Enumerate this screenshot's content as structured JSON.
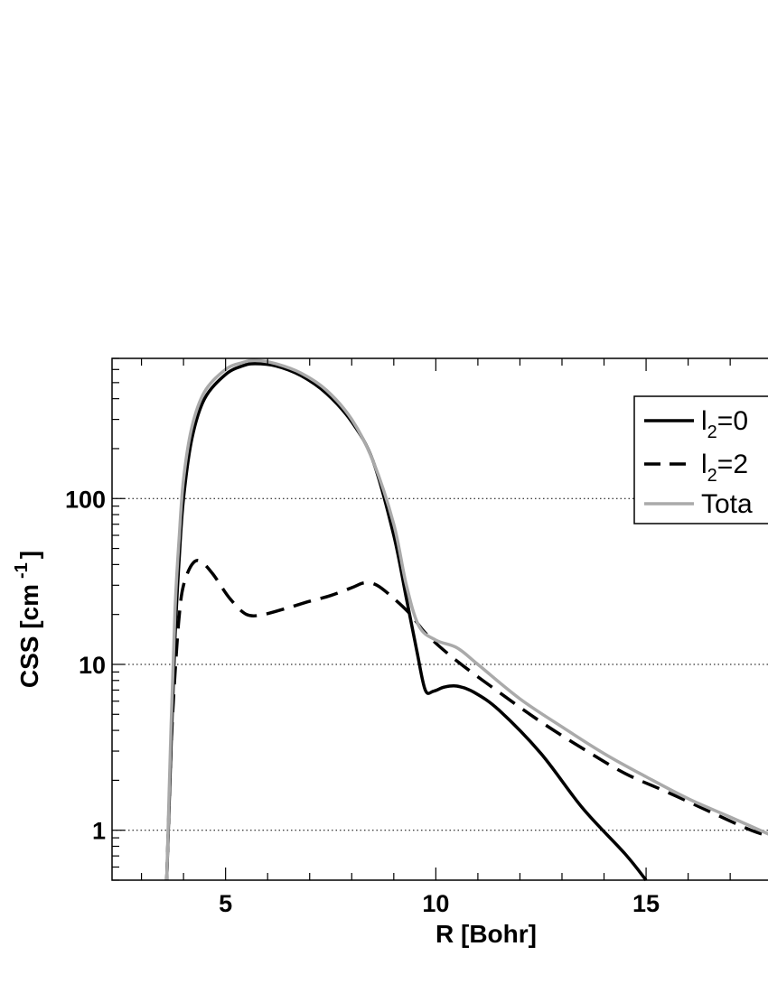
{
  "chart_data": {
    "type": "line",
    "xlabel": "R [Bohr]",
    "ylabel_main": "CSS [cm",
    "ylabel_sup": "-1",
    "ylabel_close": "]",
    "xlim": [
      2.3,
      18.2
    ],
    "ylim": [
      0.5,
      700
    ],
    "yscale": "log",
    "x_ticks": [
      5,
      10,
      15
    ],
    "x_tick_labels": [
      "5",
      "10",
      "15"
    ],
    "y_ticks": [
      1,
      10,
      100
    ],
    "y_tick_labels": [
      "1",
      "10",
      "100"
    ],
    "grid": "horizontal dotted at y ticks",
    "legend_position": "top-right",
    "series": [
      {
        "name_main": "l",
        "name_sub": "2",
        "name_rest": "=0",
        "color": "#000000",
        "dash": "solid",
        "points": [
          [
            3.6,
            0.5
          ],
          [
            3.7,
            3
          ],
          [
            3.8,
            15
          ],
          [
            3.9,
            45
          ],
          [
            4.0,
            100
          ],
          [
            4.2,
            230
          ],
          [
            4.5,
            400
          ],
          [
            5.0,
            560
          ],
          [
            5.4,
            630
          ],
          [
            5.7,
            650
          ],
          [
            6.2,
            630
          ],
          [
            6.8,
            550
          ],
          [
            7.4,
            430
          ],
          [
            8.0,
            290
          ],
          [
            8.5,
            170
          ],
          [
            9.0,
            60
          ],
          [
            9.3,
            25
          ],
          [
            9.55,
            12
          ],
          [
            9.75,
            7
          ],
          [
            9.95,
            6.9
          ],
          [
            10.2,
            7.3
          ],
          [
            10.5,
            7.4
          ],
          [
            10.9,
            6.8
          ],
          [
            11.5,
            5.3
          ],
          [
            12.5,
            2.9
          ],
          [
            13.5,
            1.35
          ],
          [
            14.5,
            0.72
          ],
          [
            15.0,
            0.5
          ]
        ]
      },
      {
        "name_main": "l",
        "name_sub": "2",
        "name_rest": "=2",
        "color": "#000000",
        "dash": "dashed",
        "points": [
          [
            3.6,
            0.5
          ],
          [
            3.7,
            3
          ],
          [
            3.8,
            9
          ],
          [
            3.9,
            20
          ],
          [
            4.0,
            30
          ],
          [
            4.2,
            40
          ],
          [
            4.4,
            42
          ],
          [
            4.7,
            35
          ],
          [
            5.1,
            25
          ],
          [
            5.5,
            20
          ],
          [
            5.9,
            20
          ],
          [
            6.5,
            22
          ],
          [
            7.0,
            24
          ],
          [
            7.5,
            26
          ],
          [
            8.0,
            29
          ],
          [
            8.3,
            31
          ],
          [
            8.6,
            30
          ],
          [
            9.0,
            25
          ],
          [
            9.4,
            20
          ],
          [
            9.8,
            15
          ],
          [
            10.5,
            10.5
          ],
          [
            11.5,
            6.8
          ],
          [
            12.5,
            4.5
          ],
          [
            13.5,
            3.1
          ],
          [
            14.5,
            2.2
          ],
          [
            15.5,
            1.7
          ],
          [
            16.5,
            1.3
          ],
          [
            17.5,
            1.0
          ],
          [
            18.2,
            0.88
          ]
        ]
      },
      {
        "name_main": "Tota",
        "name_sub": "",
        "name_rest": "",
        "color": "#aaaaaa",
        "dash": "solid",
        "points": [
          [
            3.6,
            0.5
          ],
          [
            3.7,
            4
          ],
          [
            3.8,
            22
          ],
          [
            3.9,
            60
          ],
          [
            4.0,
            130
          ],
          [
            4.2,
            270
          ],
          [
            4.5,
            440
          ],
          [
            5.0,
            600
          ],
          [
            5.4,
            660
          ],
          [
            5.7,
            680
          ],
          [
            6.2,
            650
          ],
          [
            6.8,
            570
          ],
          [
            7.4,
            450
          ],
          [
            8.0,
            300
          ],
          [
            8.5,
            170
          ],
          [
            9.0,
            70
          ],
          [
            9.3,
            30
          ],
          [
            9.6,
            17
          ],
          [
            10.0,
            14
          ],
          [
            10.5,
            12.6
          ],
          [
            11.0,
            10
          ],
          [
            12.0,
            6.2
          ],
          [
            13.0,
            4.2
          ],
          [
            14.0,
            2.9
          ],
          [
            15.0,
            2.1
          ],
          [
            16.0,
            1.55
          ],
          [
            17.0,
            1.2
          ],
          [
            18.2,
            0.88
          ]
        ]
      }
    ]
  }
}
